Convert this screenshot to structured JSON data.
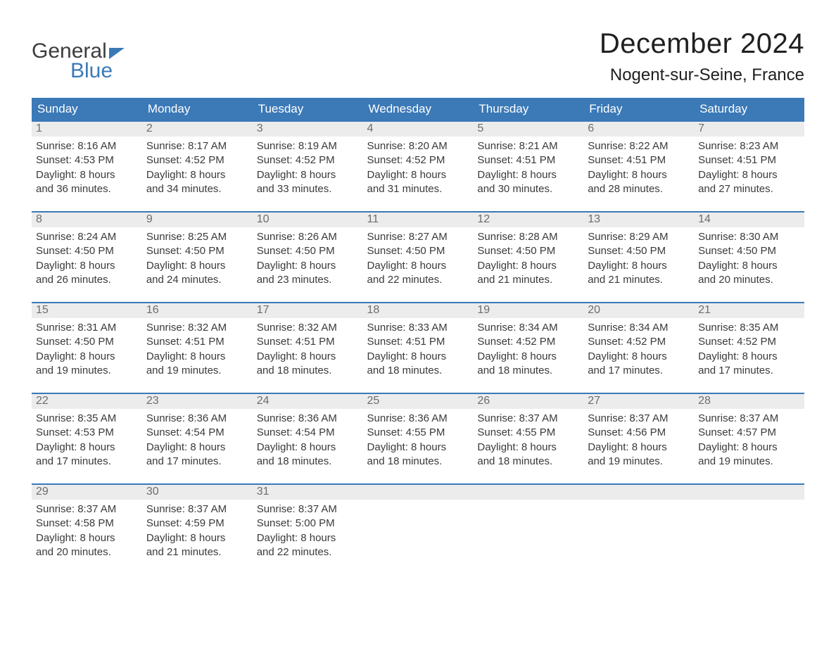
{
  "logo": {
    "line1": "General",
    "line2": "Blue"
  },
  "title": "December 2024",
  "location": "Nogent-sur-Seine, France",
  "colors": {
    "header_bg": "#3b79b7",
    "header_text": "#ffffff",
    "daynum_bg": "#ececec",
    "daynum_text": "#6d6d6d",
    "body_text": "#3a3a3a",
    "rule": "#3b79b7",
    "page_bg": "#ffffff"
  },
  "typography": {
    "title_fontsize": 40,
    "location_fontsize": 24,
    "header_fontsize": 17,
    "daynum_fontsize": 16,
    "body_fontsize": 15,
    "font_family": "Arial"
  },
  "columns": [
    "Sunday",
    "Monday",
    "Tuesday",
    "Wednesday",
    "Thursday",
    "Friday",
    "Saturday"
  ],
  "weeks": [
    [
      {
        "num": "1",
        "sunrise": "8:16 AM",
        "sunset": "4:53 PM",
        "daylight_line1": "Daylight: 8 hours",
        "daylight_line2": "and 36 minutes."
      },
      {
        "num": "2",
        "sunrise": "8:17 AM",
        "sunset": "4:52 PM",
        "daylight_line1": "Daylight: 8 hours",
        "daylight_line2": "and 34 minutes."
      },
      {
        "num": "3",
        "sunrise": "8:19 AM",
        "sunset": "4:52 PM",
        "daylight_line1": "Daylight: 8 hours",
        "daylight_line2": "and 33 minutes."
      },
      {
        "num": "4",
        "sunrise": "8:20 AM",
        "sunset": "4:52 PM",
        "daylight_line1": "Daylight: 8 hours",
        "daylight_line2": "and 31 minutes."
      },
      {
        "num": "5",
        "sunrise": "8:21 AM",
        "sunset": "4:51 PM",
        "daylight_line1": "Daylight: 8 hours",
        "daylight_line2": "and 30 minutes."
      },
      {
        "num": "6",
        "sunrise": "8:22 AM",
        "sunset": "4:51 PM",
        "daylight_line1": "Daylight: 8 hours",
        "daylight_line2": "and 28 minutes."
      },
      {
        "num": "7",
        "sunrise": "8:23 AM",
        "sunset": "4:51 PM",
        "daylight_line1": "Daylight: 8 hours",
        "daylight_line2": "and 27 minutes."
      }
    ],
    [
      {
        "num": "8",
        "sunrise": "8:24 AM",
        "sunset": "4:50 PM",
        "daylight_line1": "Daylight: 8 hours",
        "daylight_line2": "and 26 minutes."
      },
      {
        "num": "9",
        "sunrise": "8:25 AM",
        "sunset": "4:50 PM",
        "daylight_line1": "Daylight: 8 hours",
        "daylight_line2": "and 24 minutes."
      },
      {
        "num": "10",
        "sunrise": "8:26 AM",
        "sunset": "4:50 PM",
        "daylight_line1": "Daylight: 8 hours",
        "daylight_line2": "and 23 minutes."
      },
      {
        "num": "11",
        "sunrise": "8:27 AM",
        "sunset": "4:50 PM",
        "daylight_line1": "Daylight: 8 hours",
        "daylight_line2": "and 22 minutes."
      },
      {
        "num": "12",
        "sunrise": "8:28 AM",
        "sunset": "4:50 PM",
        "daylight_line1": "Daylight: 8 hours",
        "daylight_line2": "and 21 minutes."
      },
      {
        "num": "13",
        "sunrise": "8:29 AM",
        "sunset": "4:50 PM",
        "daylight_line1": "Daylight: 8 hours",
        "daylight_line2": "and 21 minutes."
      },
      {
        "num": "14",
        "sunrise": "8:30 AM",
        "sunset": "4:50 PM",
        "daylight_line1": "Daylight: 8 hours",
        "daylight_line2": "and 20 minutes."
      }
    ],
    [
      {
        "num": "15",
        "sunrise": "8:31 AM",
        "sunset": "4:50 PM",
        "daylight_line1": "Daylight: 8 hours",
        "daylight_line2": "and 19 minutes."
      },
      {
        "num": "16",
        "sunrise": "8:32 AM",
        "sunset": "4:51 PM",
        "daylight_line1": "Daylight: 8 hours",
        "daylight_line2": "and 19 minutes."
      },
      {
        "num": "17",
        "sunrise": "8:32 AM",
        "sunset": "4:51 PM",
        "daylight_line1": "Daylight: 8 hours",
        "daylight_line2": "and 18 minutes."
      },
      {
        "num": "18",
        "sunrise": "8:33 AM",
        "sunset": "4:51 PM",
        "daylight_line1": "Daylight: 8 hours",
        "daylight_line2": "and 18 minutes."
      },
      {
        "num": "19",
        "sunrise": "8:34 AM",
        "sunset": "4:52 PM",
        "daylight_line1": "Daylight: 8 hours",
        "daylight_line2": "and 18 minutes."
      },
      {
        "num": "20",
        "sunrise": "8:34 AM",
        "sunset": "4:52 PM",
        "daylight_line1": "Daylight: 8 hours",
        "daylight_line2": "and 17 minutes."
      },
      {
        "num": "21",
        "sunrise": "8:35 AM",
        "sunset": "4:52 PM",
        "daylight_line1": "Daylight: 8 hours",
        "daylight_line2": "and 17 minutes."
      }
    ],
    [
      {
        "num": "22",
        "sunrise": "8:35 AM",
        "sunset": "4:53 PM",
        "daylight_line1": "Daylight: 8 hours",
        "daylight_line2": "and 17 minutes."
      },
      {
        "num": "23",
        "sunrise": "8:36 AM",
        "sunset": "4:54 PM",
        "daylight_line1": "Daylight: 8 hours",
        "daylight_line2": "and 17 minutes."
      },
      {
        "num": "24",
        "sunrise": "8:36 AM",
        "sunset": "4:54 PM",
        "daylight_line1": "Daylight: 8 hours",
        "daylight_line2": "and 18 minutes."
      },
      {
        "num": "25",
        "sunrise": "8:36 AM",
        "sunset": "4:55 PM",
        "daylight_line1": "Daylight: 8 hours",
        "daylight_line2": "and 18 minutes."
      },
      {
        "num": "26",
        "sunrise": "8:37 AM",
        "sunset": "4:55 PM",
        "daylight_line1": "Daylight: 8 hours",
        "daylight_line2": "and 18 minutes."
      },
      {
        "num": "27",
        "sunrise": "8:37 AM",
        "sunset": "4:56 PM",
        "daylight_line1": "Daylight: 8 hours",
        "daylight_line2": "and 19 minutes."
      },
      {
        "num": "28",
        "sunrise": "8:37 AM",
        "sunset": "4:57 PM",
        "daylight_line1": "Daylight: 8 hours",
        "daylight_line2": "and 19 minutes."
      }
    ],
    [
      {
        "num": "29",
        "sunrise": "8:37 AM",
        "sunset": "4:58 PM",
        "daylight_line1": "Daylight: 8 hours",
        "daylight_line2": "and 20 minutes."
      },
      {
        "num": "30",
        "sunrise": "8:37 AM",
        "sunset": "4:59 PM",
        "daylight_line1": "Daylight: 8 hours",
        "daylight_line2": "and 21 minutes."
      },
      {
        "num": "31",
        "sunrise": "8:37 AM",
        "sunset": "5:00 PM",
        "daylight_line1": "Daylight: 8 hours",
        "daylight_line2": "and 22 minutes."
      },
      null,
      null,
      null,
      null
    ]
  ],
  "labels": {
    "sunrise_prefix": "Sunrise: ",
    "sunset_prefix": "Sunset: "
  }
}
